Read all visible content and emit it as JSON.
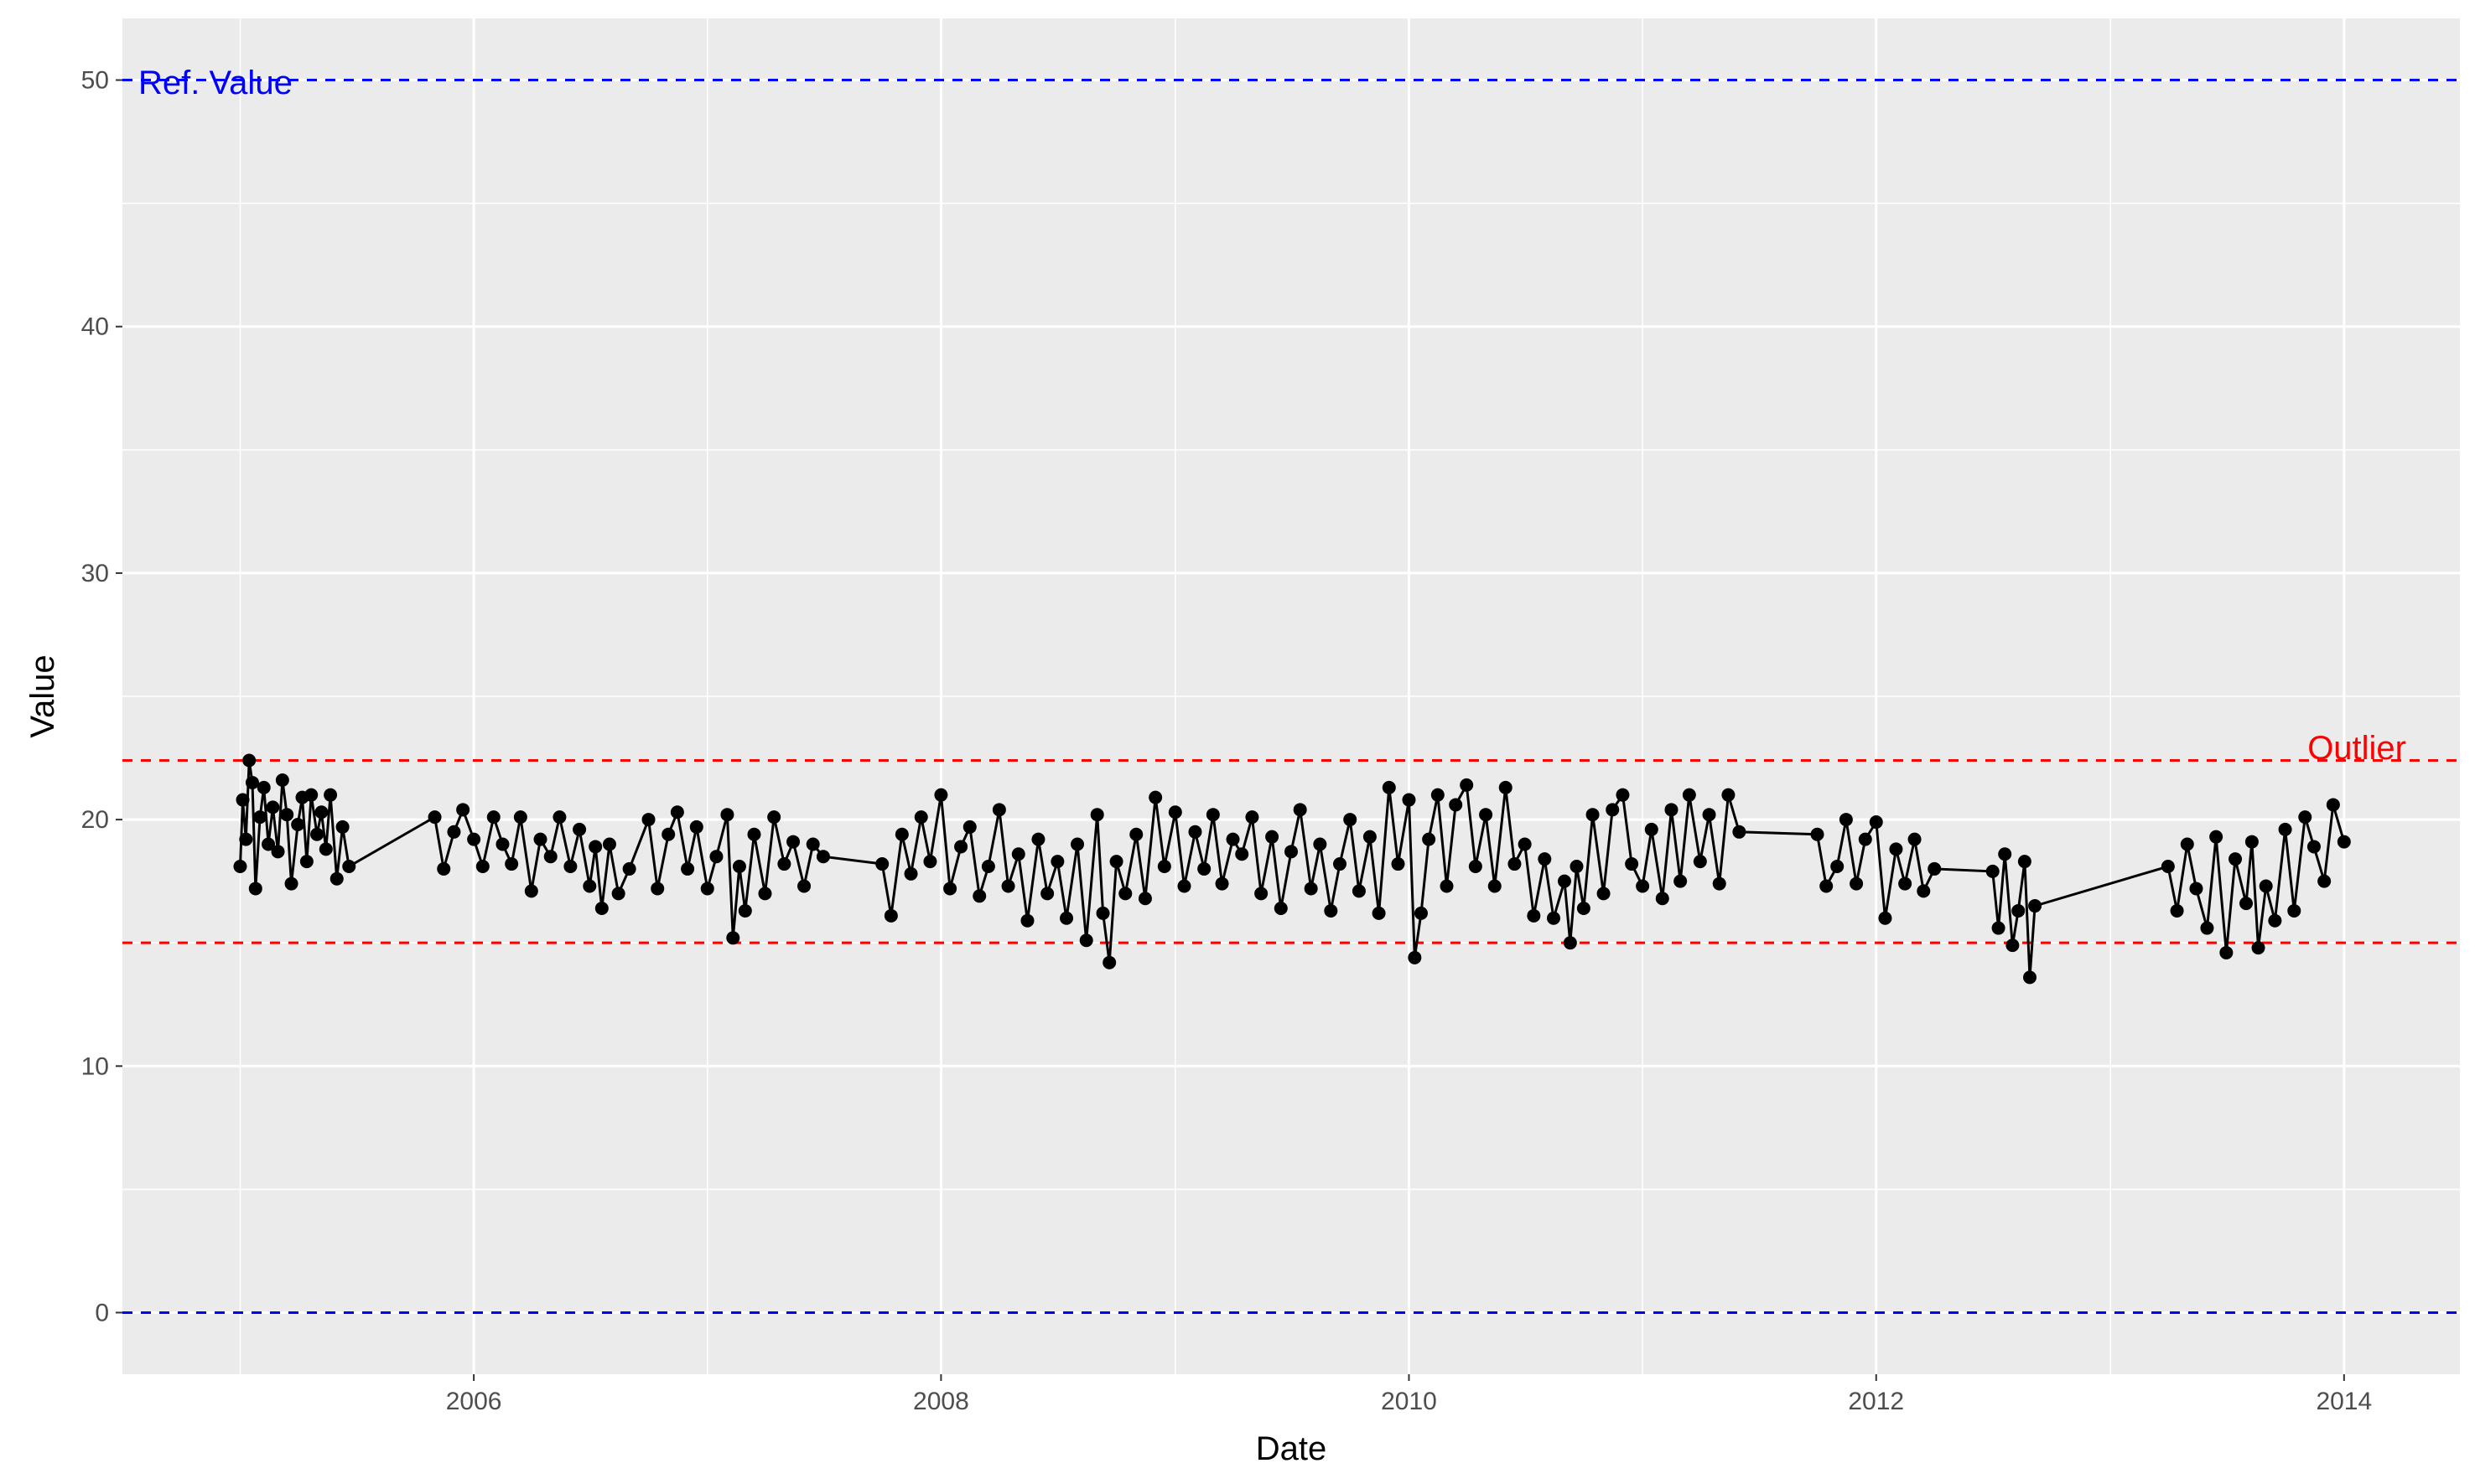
{
  "chart_data": {
    "type": "line",
    "title": "",
    "xlabel": "Date",
    "ylabel": "Value",
    "x_type": "date",
    "xlim": [
      "2004-07-01",
      "2014-07-01"
    ],
    "ylim": [
      -2.5,
      52.5
    ],
    "x_ticks": [
      "2006",
      "2008",
      "2010",
      "2012",
      "2014"
    ],
    "y_ticks": [
      "0",
      "10",
      "20",
      "30",
      "40",
      "50"
    ],
    "grid": true,
    "background": "#ebebeb",
    "colors": {
      "series": "#000000",
      "ref": "#0000ff",
      "outlier": "#ff0000",
      "grid": "#ffffff"
    },
    "reference_lines": [
      {
        "y": 50,
        "color": "#0000ff",
        "style": "dashed",
        "label": "Ref. Value"
      },
      {
        "y": 0,
        "color": "#0000ff",
        "style": "dashed",
        "label": ""
      },
      {
        "y": 22.4,
        "color": "#ff0000",
        "style": "dashed",
        "label": "Outlier"
      },
      {
        "y": 15,
        "color": "#ff0000",
        "style": "dashed",
        "label": ""
      }
    ],
    "series": [
      {
        "marker": "point+line",
        "x": [
          "2005-01-01",
          "2005-01-05",
          "2005-01-10",
          "2005-01-15",
          "2005-01-20",
          "2005-01-25",
          "2005-02-01",
          "2005-02-07",
          "2005-02-14",
          "2005-02-21",
          "2005-03-01",
          "2005-03-08",
          "2005-03-15",
          "2005-03-22",
          "2005-04-01",
          "2005-04-08",
          "2005-04-15",
          "2005-04-22",
          "2005-05-01",
          "2005-05-08",
          "2005-05-15",
          "2005-05-22",
          "2005-06-01",
          "2005-06-10",
          "2005-06-20",
          "2005-11-01",
          "2005-11-15",
          "2005-12-01",
          "2005-12-15",
          "2006-01-01",
          "2006-01-15",
          "2006-02-01",
          "2006-02-15",
          "2006-03-01",
          "2006-03-15",
          "2006-04-01",
          "2006-04-15",
          "2006-05-01",
          "2006-05-15",
          "2006-06-01",
          "2006-06-15",
          "2006-07-01",
          "2006-07-10",
          "2006-07-20",
          "2006-08-01",
          "2006-08-15",
          "2006-09-01",
          "2006-10-01",
          "2006-10-15",
          "2006-11-01",
          "2006-11-15",
          "2006-12-01",
          "2006-12-15",
          "2007-01-01",
          "2007-01-15",
          "2007-02-01",
          "2007-02-10",
          "2007-02-20",
          "2007-03-01",
          "2007-03-15",
          "2007-04-01",
          "2007-04-15",
          "2007-05-01",
          "2007-05-15",
          "2007-06-01",
          "2007-06-15",
          "2007-07-01",
          "2007-10-01",
          "2007-10-15",
          "2007-11-01",
          "2007-11-15",
          "2007-12-01",
          "2007-12-15",
          "2008-01-01",
          "2008-01-15",
          "2008-02-01",
          "2008-02-15",
          "2008-03-01",
          "2008-03-15",
          "2008-04-01",
          "2008-04-15",
          "2008-05-01",
          "2008-05-15",
          "2008-06-01",
          "2008-06-15",
          "2008-07-01",
          "2008-07-15",
          "2008-08-01",
          "2008-08-15",
          "2008-09-01",
          "2008-09-10",
          "2008-09-20",
          "2008-10-01",
          "2008-10-15",
          "2008-11-01",
          "2008-11-15",
          "2008-12-01",
          "2008-12-15",
          "2009-01-01",
          "2009-01-15",
          "2009-02-01",
          "2009-02-15",
          "2009-03-01",
          "2009-03-15",
          "2009-04-01",
          "2009-04-15",
          "2009-05-01",
          "2009-05-15",
          "2009-06-01",
          "2009-06-15",
          "2009-07-01",
          "2009-07-15",
          "2009-08-01",
          "2009-08-15",
          "2009-09-01",
          "2009-09-15",
          "2009-10-01",
          "2009-10-15",
          "2009-11-01",
          "2009-11-15",
          "2009-12-01",
          "2009-12-15",
          "2010-01-01",
          "2010-01-10",
          "2010-01-20",
          "2010-02-01",
          "2010-02-15",
          "2010-03-01",
          "2010-03-15",
          "2010-04-01",
          "2010-04-15",
          "2010-05-01",
          "2010-05-15",
          "2010-06-01",
          "2010-06-15",
          "2010-07-01",
          "2010-07-15",
          "2010-08-01",
          "2010-08-15",
          "2010-09-01",
          "2010-09-10",
          "2010-09-20",
          "2010-10-01",
          "2010-10-15",
          "2010-11-01",
          "2010-11-15",
          "2010-12-01",
          "2010-12-15",
          "2011-01-01",
          "2011-01-15",
          "2011-02-01",
          "2011-02-15",
          "2011-03-01",
          "2011-03-15",
          "2011-04-01",
          "2011-04-15",
          "2011-05-01",
          "2011-05-15",
          "2011-06-01",
          "2011-10-01",
          "2011-10-15",
          "2011-11-01",
          "2011-11-15",
          "2011-12-01",
          "2011-12-15",
          "2012-01-01",
          "2012-01-15",
          "2012-02-01",
          "2012-02-15",
          "2012-03-01",
          "2012-03-15",
          "2012-04-01",
          "2012-07-01",
          "2012-07-10",
          "2012-07-20",
          "2012-08-01",
          "2012-08-10",
          "2012-08-20",
          "2012-08-28",
          "2012-09-05",
          "2013-04-01",
          "2013-04-15",
          "2013-05-01",
          "2013-05-15",
          "2013-06-01",
          "2013-06-15",
          "2013-07-01",
          "2013-07-15",
          "2013-08-01",
          "2013-08-10",
          "2013-08-20",
          "2013-09-01",
          "2013-09-15",
          "2013-10-01",
          "2013-10-15",
          "2013-11-01",
          "2013-11-15",
          "2013-12-01",
          "2013-12-15",
          "2014-01-01"
        ],
        "y": [
          18.1,
          20.8,
          19.2,
          22.4,
          21.5,
          17.2,
          20.1,
          21.3,
          19.0,
          20.5,
          18.7,
          21.6,
          20.2,
          17.4,
          19.8,
          20.9,
          18.3,
          21.0,
          19.4,
          20.3,
          18.8,
          21.0,
          17.6,
          19.7,
          18.1,
          20.1,
          18.0,
          19.5,
          20.4,
          19.2,
          18.1,
          20.1,
          19.0,
          18.2,
          20.1,
          17.1,
          19.2,
          18.5,
          20.1,
          18.1,
          19.6,
          17.3,
          18.9,
          16.4,
          19.0,
          17.0,
          18.0,
          20.0,
          17.2,
          19.4,
          20.3,
          18.0,
          19.7,
          17.2,
          18.5,
          20.2,
          15.2,
          18.1,
          16.3,
          19.4,
          17.0,
          20.1,
          18.2,
          19.1,
          17.3,
          19.0,
          18.5,
          18.2,
          16.1,
          19.4,
          17.8,
          20.1,
          18.3,
          21.0,
          17.2,
          18.9,
          19.7,
          16.9,
          18.1,
          20.4,
          17.3,
          18.6,
          15.9,
          19.2,
          17.0,
          18.3,
          16.0,
          19.0,
          15.1,
          20.2,
          16.2,
          14.2,
          18.3,
          17.0,
          19.4,
          16.8,
          20.9,
          18.1,
          20.3,
          17.3,
          19.5,
          18.0,
          20.2,
          17.4,
          19.2,
          18.6,
          20.1,
          17.0,
          19.3,
          16.4,
          18.7,
          20.4,
          17.2,
          19.0,
          16.3,
          18.2,
          20.0,
          17.1,
          19.3,
          16.2,
          21.3,
          18.2,
          20.8,
          14.4,
          16.2,
          19.2,
          21.0,
          17.3,
          20.6,
          21.4,
          18.1,
          20.2,
          17.3,
          21.3,
          18.2,
          19.0,
          16.1,
          18.4,
          16.0,
          17.5,
          15.0,
          18.1,
          16.4,
          20.2,
          17.0,
          20.4,
          21.0,
          18.2,
          17.3,
          19.6,
          16.8,
          20.4,
          17.5,
          21.0,
          18.3,
          20.2,
          17.4,
          21.0,
          19.5,
          19.4,
          17.3,
          18.1,
          20.0,
          17.4,
          19.2,
          19.9,
          16.0,
          18.8,
          17.4,
          19.2,
          17.1,
          18.0,
          17.9,
          15.6,
          18.6,
          14.9,
          16.3,
          18.3,
          13.6,
          16.5,
          18.1,
          16.3,
          19.0,
          17.2,
          15.6,
          19.3,
          14.6,
          18.4,
          16.6,
          19.1,
          14.8,
          17.3,
          15.9,
          19.6,
          16.3,
          20.1,
          18.9,
          17.5,
          20.6,
          19.1
        ]
      }
    ]
  },
  "annotations": {
    "ref_label": "Ref. Value",
    "outlier_label": "Outlier"
  }
}
